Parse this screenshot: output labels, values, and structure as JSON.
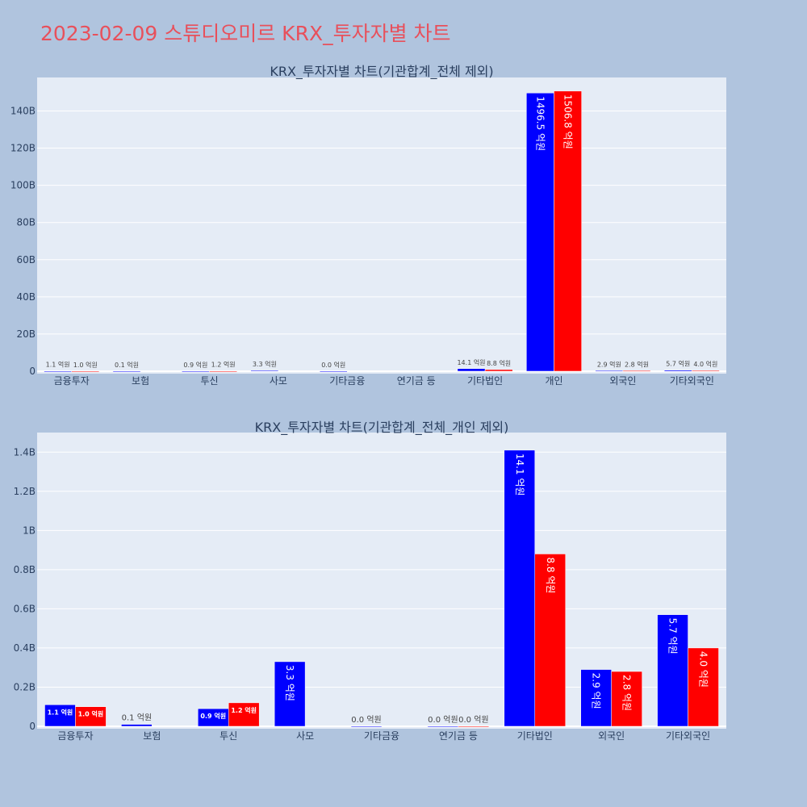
{
  "page_title": "2023-02-09 스튜디오미르 KRX_투자자별 차트",
  "colors": {
    "background": "#b0c4de",
    "plot_background": "#e5ecf6",
    "title": "#e8505b",
    "buy": "#0000ff",
    "sell": "#ff0000"
  },
  "chart_data": [
    {
      "type": "bar",
      "title": "KRX_투자자별 차트(기관합계_전체 제외)",
      "categories": [
        "금융투자",
        "보험",
        "투신",
        "사모",
        "기타금융",
        "연기금 등",
        "기타법인",
        "개인",
        "외국인",
        "기타외국인"
      ],
      "ylim": [
        0,
        158000000000
      ],
      "yticks": [
        0,
        20000000000,
        40000000000,
        60000000000,
        80000000000,
        100000000000,
        120000000000,
        140000000000
      ],
      "ytick_labels": [
        "0",
        "20B",
        "40B",
        "60B",
        "80B",
        "100B",
        "120B",
        "140B"
      ],
      "grid": true,
      "series": [
        {
          "color": "#0000ff",
          "values": [
            110000000,
            10000000,
            90000000,
            330000000,
            0,
            null,
            1410000000,
            149650000000,
            290000000,
            570000000
          ],
          "labels": [
            "1.1 억원",
            "0.1 억원",
            "0.9 억원",
            "3.3 억원",
            "0.0 억원",
            "",
            "14.1 억원",
            "1496.5 억원",
            "2.9 억원",
            "5.7 억원"
          ]
        },
        {
          "color": "#ff0000",
          "values": [
            100000000,
            null,
            120000000,
            null,
            null,
            null,
            880000000,
            150680000000,
            280000000,
            400000000
          ],
          "labels": [
            "1.0 억원",
            "",
            "1.2 억원",
            "",
            "",
            "",
            "8.8 억원",
            "1506.8 억원",
            "2.8 억원",
            "4.0 억원"
          ]
        }
      ]
    },
    {
      "type": "bar",
      "title": "KRX_투자자별 차트(기관합계_전체_개인 제외)",
      "categories": [
        "금융투자",
        "보험",
        "투신",
        "사모",
        "기타금융",
        "연기금 등",
        "기타법인",
        "외국인",
        "기타외국인"
      ],
      "ylim": [
        0,
        1500000000
      ],
      "yticks": [
        0,
        200000000,
        400000000,
        600000000,
        800000000,
        1000000000,
        1200000000,
        1400000000
      ],
      "ytick_labels": [
        "0",
        "0.2B",
        "0.4B",
        "0.6B",
        "0.8B",
        "1B",
        "1.2B",
        "1.4B"
      ],
      "grid": true,
      "series": [
        {
          "color": "#0000ff",
          "values": [
            110000000,
            10000000,
            90000000,
            330000000,
            0,
            0,
            1410000000,
            290000000,
            570000000
          ],
          "labels": [
            "1.1 억원",
            "0.1 억원",
            "0.9 억원",
            "3.3 억원",
            "0.0 억원",
            "0.0 억원",
            "14.1 억원",
            "2.9 억원",
            "5.7 억원"
          ]
        },
        {
          "color": "#ff0000",
          "values": [
            100000000,
            null,
            120000000,
            null,
            null,
            0,
            880000000,
            280000000,
            400000000
          ],
          "labels": [
            "1.0 억원",
            "",
            "1.2 억원",
            "",
            "",
            "0.0 억원",
            "8.8 억원",
            "2.8 억원",
            "4.0 억원"
          ]
        }
      ]
    }
  ]
}
